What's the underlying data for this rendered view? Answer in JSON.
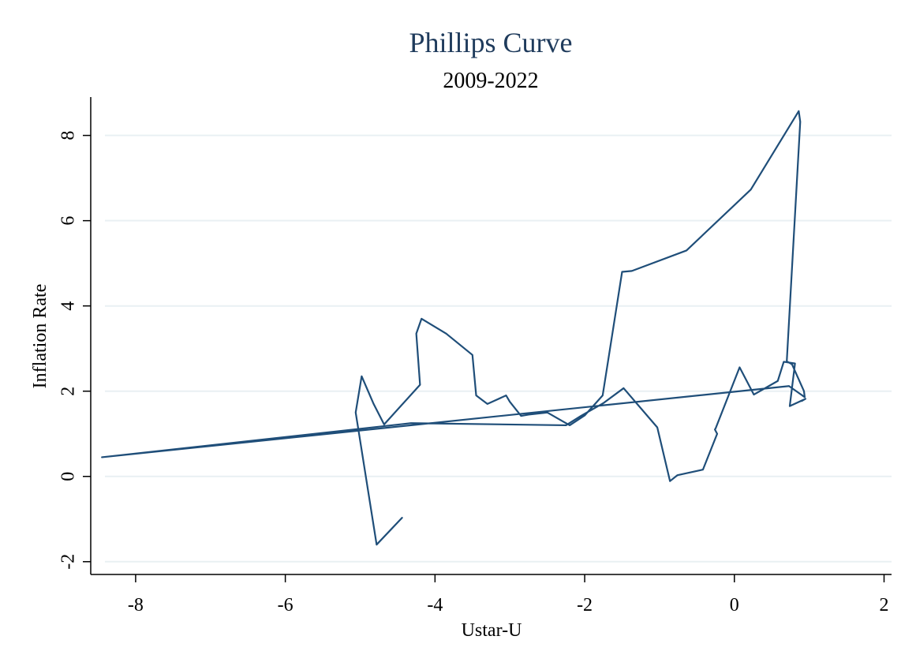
{
  "chart_data": {
    "type": "line",
    "title": "Phillips Curve",
    "subtitle": "2009-2022",
    "xlabel": "Ustar-U",
    "ylabel": "Inflation Rate",
    "xlim": [
      -8.6,
      2.1
    ],
    "ylim": [
      -2.3,
      8.9
    ],
    "xticks": [
      -8,
      -6,
      -4,
      -2,
      0,
      2
    ],
    "yticks": [
      -2,
      0,
      2,
      4,
      6,
      8
    ],
    "xtick_labels": [
      "-8",
      "-6",
      "-4",
      "-2",
      "0",
      "2"
    ],
    "ytick_labels": [
      "-2",
      "0",
      "2",
      "4",
      "6",
      "8"
    ],
    "grid": "horizontal",
    "legend": "none",
    "series": [
      {
        "color": "#1f4e79",
        "x": [
          -4.44,
          -4.78,
          -5.06,
          -4.98,
          -4.82,
          -4.68,
          -4.2,
          -4.25,
          -4.18,
          -3.85,
          -3.5,
          -3.45,
          -3.3,
          -3.05,
          -3,
          -2.85,
          -2.75,
          -2.5,
          -2.3,
          -2.2,
          -2,
          -1.76,
          -1.5,
          -1.37,
          -0.64,
          0.22,
          0.86,
          0.88,
          0.7,
          0.71,
          0.77,
          0.93,
          0.94,
          0.73,
          -8.45,
          -4.32,
          -2.25,
          -2.05,
          -1.75,
          -1.48,
          -1.03,
          -0.86,
          -0.76,
          -0.42,
          -0.23,
          -0.26,
          -0.25,
          -0.1,
          0.07,
          0.26,
          0.58,
          0.66,
          0.81,
          0.74,
          0.95,
          0.9
        ],
        "y": [
          -0.97,
          -1.6,
          1.5,
          2.35,
          1.7,
          1.22,
          2.15,
          3.35,
          3.7,
          3.35,
          2.85,
          1.9,
          1.7,
          1.9,
          1.75,
          1.42,
          1.45,
          1.5,
          1.3,
          1.2,
          1.43,
          1.9,
          4.8,
          4.82,
          5.3,
          6.73,
          8.57,
          8.32,
          2.7,
          2.69,
          2.63,
          2.0,
          1.86,
          2.12,
          0.45,
          1.25,
          1.2,
          1.42,
          1.72,
          2.07,
          1.15,
          -0.11,
          0.03,
          0.16,
          1.0,
          1.1,
          1.13,
          1.8,
          2.56,
          1.92,
          2.24,
          2.69,
          2.65,
          1.65,
          1.82,
          1.77
        ]
      }
    ]
  }
}
